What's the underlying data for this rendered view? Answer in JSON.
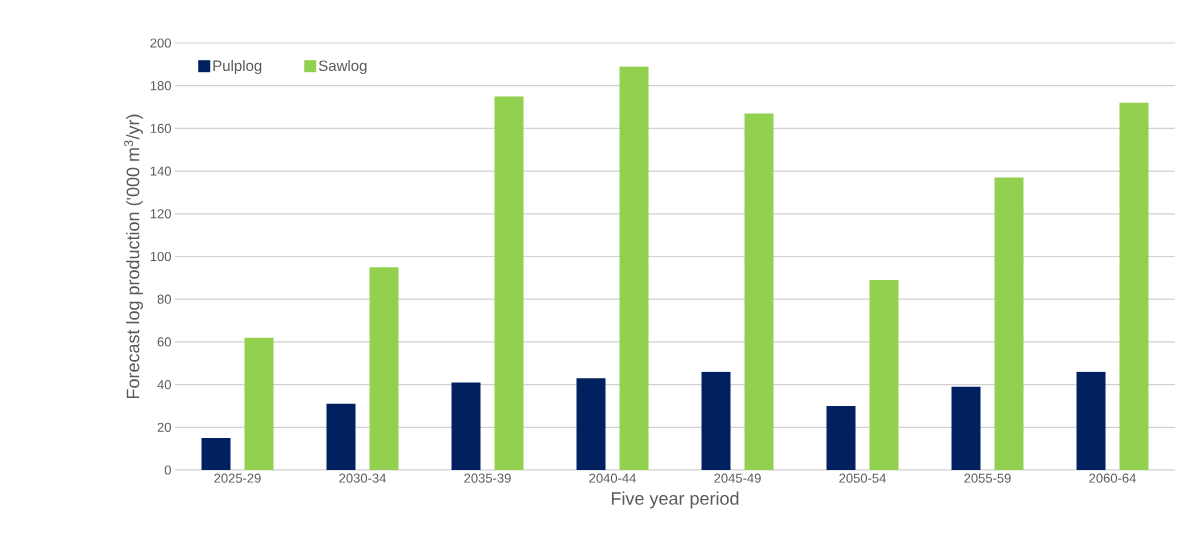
{
  "chart_data": {
    "type": "bar",
    "xlabel": "Five year period",
    "ylabel": "Forecast log production ('000 m$^{3}$/yr)",
    "categories": [
      "2025-29",
      "2030-34",
      "2035-39",
      "2040-44",
      "2045-49",
      "2050-54",
      "2055-59",
      "2060-64"
    ],
    "series": [
      {
        "name": "Pulplog",
        "color": "#002060",
        "values": [
          15,
          31,
          41,
          43,
          46,
          30,
          39,
          46
        ]
      },
      {
        "name": "Sawlog",
        "color": "#92d050",
        "values": [
          62,
          95,
          175,
          189,
          167,
          89,
          137,
          172
        ]
      }
    ],
    "ylim": [
      0,
      200
    ],
    "yticks": [
      0,
      20,
      40,
      60,
      80,
      100,
      120,
      140,
      160,
      180,
      200
    ],
    "grid": "y",
    "legend": "top left"
  }
}
